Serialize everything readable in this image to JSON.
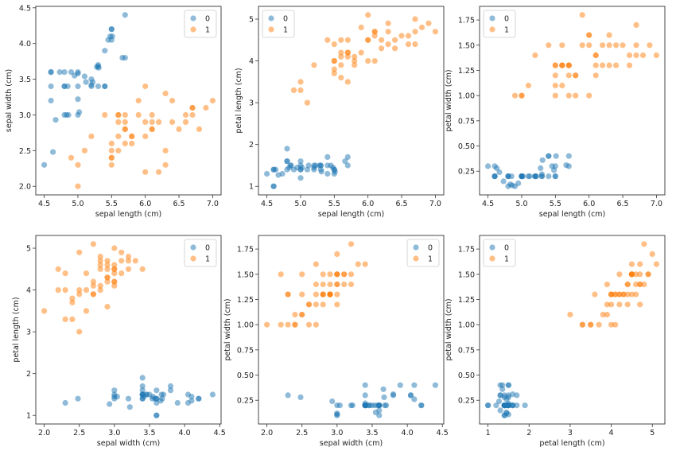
{
  "chart_data": {
    "type": "scatter",
    "features": [
      "sepal length (cm)",
      "sepal width (cm)",
      "petal length (cm)",
      "petal width (cm)"
    ],
    "legend_placement": [
      "upper right",
      "upper left",
      "upper left",
      "upper right",
      "upper right",
      "upper left"
    ],
    "grid": false,
    "colors": {
      "0": "#1f77b4",
      "1": "#ff7f0e"
    },
    "alpha": 0.5,
    "series": [
      {
        "name": "0",
        "points": [
          [
            4.5,
            2.3,
            1.3,
            0.3
          ],
          [
            4.63,
            2.48,
            1.4,
            0.28
          ],
          [
            4.67,
            2.93,
            1.27,
            0.24
          ],
          [
            4.6,
            3.2,
            1.4,
            0.2
          ],
          [
            4.6,
            3.4,
            1.4,
            0.3
          ],
          [
            4.6,
            3.6,
            1.0,
            0.2
          ],
          [
            4.6,
            3.6,
            1.0,
            0.2
          ],
          [
            4.73,
            3.6,
            1.3,
            0.15
          ],
          [
            4.8,
            3.6,
            1.6,
            0.2
          ],
          [
            4.8,
            3.4,
            1.6,
            0.2
          ],
          [
            4.8,
            3.4,
            1.9,
            0.2
          ],
          [
            4.85,
            3.4,
            1.5,
            0.2
          ],
          [
            4.8,
            3.0,
            1.4,
            0.1
          ],
          [
            4.83,
            3.0,
            1.45,
            0.12
          ],
          [
            4.86,
            3.0,
            1.5,
            0.11
          ],
          [
            4.9,
            3.6,
            1.4,
            0.1
          ],
          [
            4.95,
            3.55,
            1.45,
            0.13
          ],
          [
            5.0,
            3.6,
            1.4,
            0.2
          ],
          [
            5.0,
            3.58,
            1.4,
            0.2
          ],
          [
            5.0,
            3.4,
            1.5,
            0.2
          ],
          [
            5.0,
            3.22,
            1.2,
            0.2
          ],
          [
            5.0,
            3.0,
            1.6,
            0.2
          ],
          [
            5.02,
            3.04,
            1.45,
            0.2
          ],
          [
            5.1,
            3.54,
            1.4,
            0.2
          ],
          [
            5.12,
            3.46,
            1.5,
            0.2
          ],
          [
            5.2,
            3.5,
            1.5,
            0.2
          ],
          [
            5.2,
            3.4,
            1.4,
            0.2
          ],
          [
            5.2,
            3.42,
            1.45,
            0.2
          ],
          [
            5.22,
            3.46,
            1.5,
            0.2
          ],
          [
            5.28,
            3.67,
            1.5,
            0.28
          ],
          [
            5.3,
            3.7,
            1.5,
            0.2
          ],
          [
            5.3,
            3.68,
            1.4,
            0.2
          ],
          [
            5.31,
            3.66,
            1.35,
            0.36
          ],
          [
            5.3,
            3.4,
            1.5,
            0.22
          ],
          [
            5.4,
            3.4,
            1.7,
            0.2
          ],
          [
            5.4,
            3.4,
            1.5,
            0.4
          ],
          [
            5.4,
            3.9,
            1.3,
            0.4
          ],
          [
            5.45,
            4.05,
            1.5,
            0.3
          ],
          [
            5.48,
            4.1,
            1.45,
            0.26
          ],
          [
            5.5,
            4.2,
            1.4,
            0.2
          ],
          [
            5.5,
            4.2,
            1.4,
            0.2
          ],
          [
            5.5,
            4.05,
            1.3,
            0.3
          ],
          [
            5.51,
            4.1,
            1.35,
            0.4
          ],
          [
            5.66,
            3.8,
            1.6,
            0.31
          ],
          [
            5.7,
            3.8,
            1.7,
            0.3
          ],
          [
            5.7,
            4.4,
            1.5,
            0.4
          ]
        ]
      },
      {
        "name": "1",
        "points": [
          [
            7.0,
            3.2,
            4.7,
            1.4
          ],
          [
            6.4,
            3.2,
            4.5,
            1.5
          ],
          [
            6.9,
            3.1,
            4.9,
            1.5
          ],
          [
            5.5,
            2.3,
            4.0,
            1.3
          ],
          [
            6.5,
            2.8,
            4.6,
            1.5
          ],
          [
            5.7,
            2.8,
            4.5,
            1.3
          ],
          [
            6.3,
            3.3,
            4.7,
            1.6
          ],
          [
            4.9,
            2.4,
            3.3,
            1.0
          ],
          [
            6.6,
            2.9,
            4.6,
            1.3
          ],
          [
            5.2,
            2.7,
            3.9,
            1.4
          ],
          [
            5.0,
            2.0,
            3.5,
            1.0
          ],
          [
            5.9,
            3.0,
            4.2,
            1.5
          ],
          [
            6.0,
            2.2,
            4.0,
            1.0
          ],
          [
            6.1,
            2.9,
            4.7,
            1.4
          ],
          [
            5.6,
            2.9,
            3.6,
            1.3
          ],
          [
            6.7,
            3.1,
            4.4,
            1.4
          ],
          [
            5.6,
            3.0,
            4.5,
            1.5
          ],
          [
            5.8,
            2.7,
            4.1,
            1.0
          ],
          [
            6.2,
            2.2,
            4.5,
            1.5
          ],
          [
            5.6,
            2.5,
            3.9,
            1.1
          ],
          [
            5.9,
            3.2,
            4.8,
            1.8
          ],
          [
            6.1,
            2.8,
            4.0,
            1.3
          ],
          [
            6.3,
            2.5,
            4.9,
            1.5
          ],
          [
            6.1,
            2.8,
            4.7,
            1.2
          ],
          [
            6.4,
            2.9,
            4.3,
            1.3
          ],
          [
            6.6,
            3.0,
            4.4,
            1.4
          ],
          [
            6.8,
            2.8,
            4.8,
            1.4
          ],
          [
            6.7,
            3.0,
            5.0,
            1.7
          ],
          [
            6.0,
            2.9,
            4.5,
            1.5
          ],
          [
            5.7,
            2.6,
            3.5,
            1.0
          ],
          [
            5.5,
            2.4,
            3.8,
            1.1
          ],
          [
            5.5,
            2.4,
            3.7,
            1.0
          ],
          [
            5.8,
            2.7,
            3.9,
            1.2
          ],
          [
            6.0,
            2.7,
            5.1,
            1.6
          ],
          [
            5.4,
            3.0,
            4.5,
            1.5
          ],
          [
            6.0,
            3.4,
            4.5,
            1.6
          ],
          [
            6.7,
            3.1,
            4.7,
            1.5
          ],
          [
            6.3,
            2.3,
            4.4,
            1.3
          ],
          [
            5.6,
            3.0,
            4.1,
            1.3
          ],
          [
            5.5,
            2.5,
            4.0,
            1.3
          ],
          [
            5.5,
            2.6,
            4.4,
            1.2
          ],
          [
            6.1,
            3.0,
            4.6,
            1.4
          ],
          [
            5.8,
            2.6,
            4.0,
            1.2
          ],
          [
            5.0,
            2.3,
            3.3,
            1.0
          ],
          [
            5.6,
            2.7,
            4.2,
            1.3
          ],
          [
            5.7,
            3.0,
            4.2,
            1.2
          ],
          [
            5.7,
            2.9,
            4.2,
            1.3
          ],
          [
            6.2,
            2.9,
            4.3,
            1.3
          ],
          [
            5.1,
            2.5,
            3.0,
            1.1
          ],
          [
            5.7,
            2.8,
            4.1,
            1.3
          ]
        ]
      }
    ],
    "subplots": [
      {
        "x_feature": 0,
        "y_feature": 1,
        "xlabel": "sepal length (cm)",
        "ylabel": "sepal width (cm)",
        "xticks": [
          "4.5",
          "5.0",
          "5.5",
          "6.0",
          "6.5",
          "7.0"
        ],
        "yticks": [
          "2.0",
          "2.5",
          "3.0",
          "3.5",
          "4.0",
          "4.5"
        ]
      },
      {
        "x_feature": 0,
        "y_feature": 2,
        "xlabel": "sepal length (cm)",
        "ylabel": "petal length (cm)",
        "xticks": [
          "4.5",
          "5.0",
          "5.5",
          "6.0",
          "6.5",
          "7.0"
        ],
        "yticks": [
          "1",
          "2",
          "3",
          "4",
          "5"
        ]
      },
      {
        "x_feature": 0,
        "y_feature": 3,
        "xlabel": "sepal length (cm)",
        "ylabel": "petal width (cm)",
        "xticks": [
          "4.5",
          "5.0",
          "5.5",
          "6.0",
          "6.5",
          "7.0"
        ],
        "yticks": [
          "0.25",
          "0.50",
          "0.75",
          "1.00",
          "1.25",
          "1.50",
          "1.75"
        ]
      },
      {
        "x_feature": 1,
        "y_feature": 2,
        "xlabel": "sepal width (cm)",
        "ylabel": "petal length (cm)",
        "xticks": [
          "2.0",
          "2.5",
          "3.0",
          "3.5",
          "4.0",
          "4.5"
        ],
        "yticks": [
          "1",
          "2",
          "3",
          "4",
          "5"
        ]
      },
      {
        "x_feature": 1,
        "y_feature": 3,
        "xlabel": "sepal width (cm)",
        "ylabel": "petal width (cm)",
        "xticks": [
          "2.0",
          "2.5",
          "3.0",
          "3.5",
          "4.0",
          "4.5"
        ],
        "yticks": [
          "0.25",
          "0.50",
          "0.75",
          "1.00",
          "1.25",
          "1.50",
          "1.75"
        ]
      },
      {
        "x_feature": 2,
        "y_feature": 3,
        "xlabel": "petal length (cm)",
        "ylabel": "petal width (cm)",
        "xticks": [
          "1",
          "2",
          "3",
          "4",
          "5"
        ],
        "yticks": [
          "0.25",
          "0.50",
          "0.75",
          "1.00",
          "1.25",
          "1.50",
          "1.75"
        ]
      }
    ]
  }
}
